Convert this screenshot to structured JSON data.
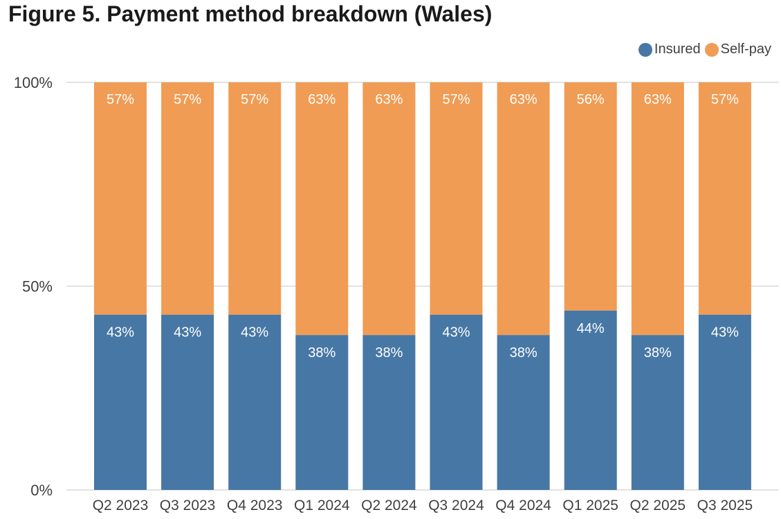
{
  "title": "Figure 5. Payment method breakdown (Wales)",
  "colors": {
    "insured": "#4777a4",
    "self_pay": "#f09c54",
    "grid": "#d9d9d9",
    "axis_text": "#404040",
    "label_text": "#ffffff"
  },
  "legend": [
    {
      "name": "Insured",
      "color": "#4777a4"
    },
    {
      "name": "Self-pay",
      "color": "#f09c54"
    }
  ],
  "chart_data": {
    "type": "bar",
    "stacked": true,
    "title": "Figure 5. Payment method breakdown (Wales)",
    "categories": [
      "Q2 2023",
      "Q3 2023",
      "Q4 2023",
      "Q1 2024",
      "Q2 2024",
      "Q3 2024",
      "Q4 2024",
      "Q1 2025",
      "Q2 2025",
      "Q3 2025"
    ],
    "series": [
      {
        "name": "Insured",
        "values": [
          43,
          43,
          43,
          38,
          38,
          43,
          38,
          44,
          38,
          43
        ],
        "labels": [
          "43%",
          "43%",
          "43%",
          "38%",
          "38%",
          "43%",
          "38%",
          "44%",
          "38%",
          "43%"
        ]
      },
      {
        "name": "Self-pay",
        "values": [
          57,
          57,
          57,
          63,
          63,
          57,
          63,
          56,
          63,
          57
        ],
        "labels": [
          "57%",
          "57%",
          "57%",
          "63%",
          "63%",
          "57%",
          "63%",
          "56%",
          "63%",
          "57%"
        ]
      }
    ],
    "ylim": [
      0,
      100
    ],
    "yticks": [
      {
        "value": 0,
        "label": "0%"
      },
      {
        "value": 50,
        "label": "50%"
      },
      {
        "value": 100,
        "label": "100%"
      }
    ],
    "grid": true,
    "legend_position": "top-right"
  }
}
